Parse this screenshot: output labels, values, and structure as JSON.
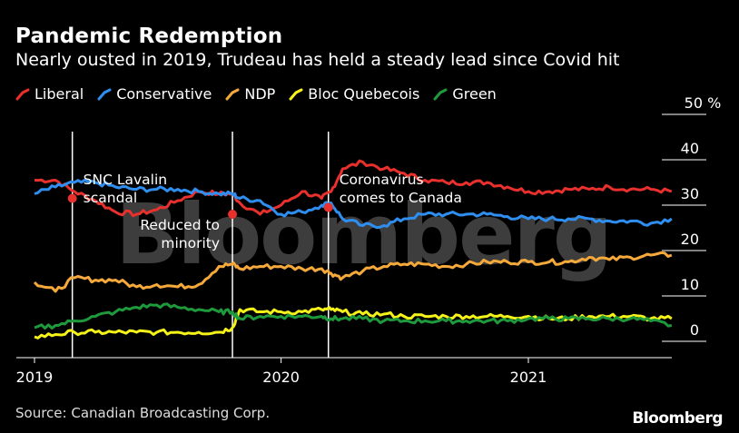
{
  "header": {
    "title": "Pandemic Redemption",
    "subtitle": "Nearly ousted in 2019, Trudeau has held a steady lead since Covid hit"
  },
  "footer": {
    "source": "Source: Canadian Broadcasting Corp.",
    "brand": "Bloomberg"
  },
  "watermark": "Bloomberg",
  "chart_data": {
    "type": "line",
    "title": "Pandemic Redemption",
    "subtitle": "Nearly ousted in 2019, Trudeau has held a steady lead since Covid hit",
    "y_unit": "%",
    "ylim": [
      0,
      50
    ],
    "y_ticks": [
      0,
      10,
      20,
      30,
      40,
      50
    ],
    "y_tick_labels": [
      "0",
      "10",
      "20",
      "30",
      "40",
      "50 %"
    ],
    "y_axis_side": "right",
    "x_ticks": [
      "2019-01-01",
      "2020-01-01",
      "2021-01-01"
    ],
    "x_tick_labels": [
      "2019",
      "2020",
      "2021"
    ],
    "xlim": [
      "2019-01-01",
      "2021-08-10"
    ],
    "grid": "horizontal tick marks only",
    "legend_position": "top-left",
    "x": [
      "2019-01-01",
      "2019-02-01",
      "2019-03-01",
      "2019-04-01",
      "2019-05-01",
      "2019-06-01",
      "2019-07-01",
      "2019-08-01",
      "2019-09-01",
      "2019-10-01",
      "2019-10-21",
      "2019-11-01",
      "2019-12-01",
      "2020-01-01",
      "2020-02-01",
      "2020-03-01",
      "2020-03-15",
      "2020-04-01",
      "2020-05-01",
      "2020-06-01",
      "2020-07-01",
      "2020-08-01",
      "2020-09-01",
      "2020-10-01",
      "2020-11-01",
      "2020-12-01",
      "2021-01-01",
      "2021-02-01",
      "2021-03-01",
      "2021-04-01",
      "2021-05-01",
      "2021-06-01",
      "2021-07-01",
      "2021-08-01"
    ],
    "series": [
      {
        "name": "Liberal",
        "color": "#e8302c",
        "values": [
          35.5,
          35.5,
          33,
          31,
          28.5,
          28,
          29,
          31,
          33,
          32.5,
          32.5,
          30.5,
          28,
          30,
          33,
          31.5,
          33,
          38,
          39.5,
          38,
          37,
          35.5,
          35,
          35,
          35,
          34,
          33,
          33,
          33.5,
          33.5,
          34,
          33.5,
          33.5,
          33
        ]
      },
      {
        "name": "Conservative",
        "color": "#2f8ff0",
        "values": [
          32.5,
          34,
          35,
          35,
          34,
          33.5,
          33.5,
          33.5,
          33,
          32.5,
          32.5,
          31.5,
          31,
          28,
          28.5,
          30,
          30.5,
          27,
          25.5,
          25.5,
          27,
          28,
          28,
          28,
          28,
          27.5,
          27,
          27,
          27,
          27,
          26.5,
          26.5,
          26,
          27
        ]
      },
      {
        "name": "NDP",
        "color": "#f6a93b",
        "values": [
          13,
          11,
          14,
          13.5,
          13.5,
          12,
          12.5,
          12,
          12.5,
          16.5,
          17,
          16,
          16.5,
          16.5,
          16,
          16,
          15,
          14,
          15.5,
          16.5,
          17,
          17,
          16.5,
          17,
          17.5,
          17.5,
          17.5,
          17.5,
          17.5,
          18.5,
          18,
          18.5,
          19,
          19
        ]
      },
      {
        "name": "Bloc Quebecois",
        "color": "#f5f21a",
        "values": [
          1,
          1.5,
          2,
          2,
          2,
          2,
          2,
          2,
          2,
          2,
          3,
          7,
          6.5,
          6.5,
          6.5,
          7,
          7,
          6.5,
          6,
          6,
          5.5,
          5.5,
          5.5,
          5.5,
          5.5,
          5.5,
          5.5,
          5,
          5,
          5.5,
          5.5,
          5.5,
          5,
          5
        ]
      },
      {
        "name": "Green",
        "color": "#1e9a3c",
        "values": [
          3,
          3.5,
          4.5,
          5.5,
          6.5,
          7.5,
          8,
          7.5,
          7,
          6.5,
          6.5,
          5,
          5.5,
          5.5,
          5.5,
          5.5,
          5,
          5,
          5,
          4.5,
          4.5,
          4.5,
          4.5,
          4.5,
          4.5,
          4.5,
          5,
          5,
          5,
          5,
          5,
          5,
          4.5,
          3.5
        ]
      }
    ],
    "annotations": [
      {
        "date": "2019-02-26",
        "text": [
          "SNC Lavalin",
          "scandal"
        ],
        "marker_value": 31.5
      },
      {
        "date": "2019-10-21",
        "text": [
          "Reduced to",
          "minority"
        ],
        "marker_value": 28
      },
      {
        "date": "2020-03-11",
        "text": [
          "Coronavirus",
          "comes to Canada"
        ],
        "marker_value": 29.5
      }
    ]
  }
}
